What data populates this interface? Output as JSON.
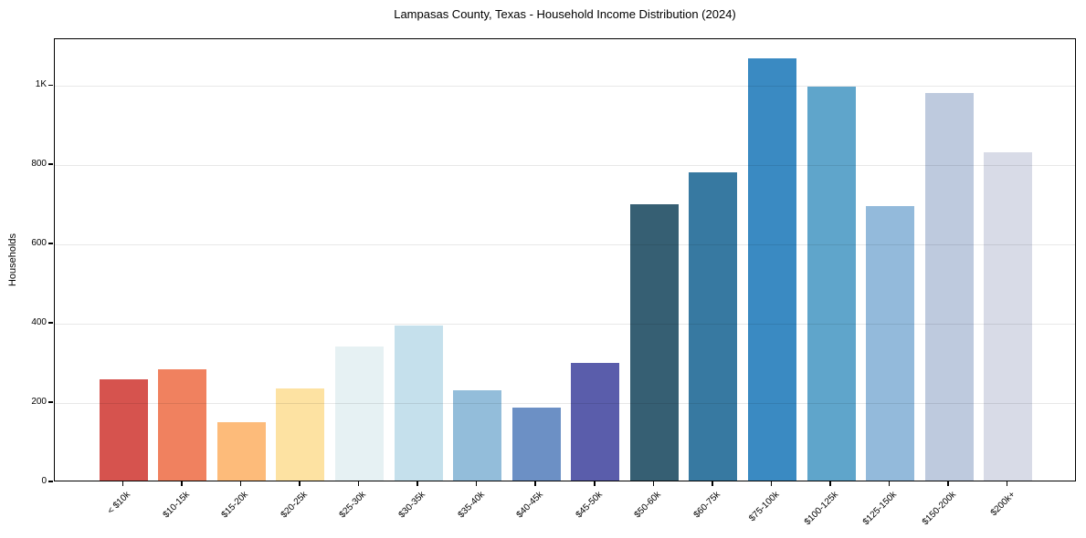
{
  "chart_data": {
    "type": "bar",
    "title": "Lampasas County, Texas - Household Income Distribution (2024)",
    "xlabel": "",
    "ylabel": "Households",
    "categories": [
      "< $10k",
      "$10-15k",
      "$15-20k",
      "$20-25k",
      "$25-30k",
      "$30-35k",
      "$35-40k",
      "$40-45k",
      "$45-50k",
      "$50-60k",
      "$60-75k",
      "$75-100k",
      "$100-125k",
      "$125-150k",
      "$150-200k",
      "$200k+"
    ],
    "values": [
      255,
      280,
      147,
      233,
      338,
      390,
      228,
      184,
      297,
      697,
      778,
      1065,
      993,
      692,
      977,
      829
    ],
    "bar_colors": [
      "#d6534e",
      "#f0815f",
      "#fdbb7a",
      "#fde2a2",
      "#e6f1f3",
      "#c5e0ec",
      "#93bdda",
      "#6c90c5",
      "#5a5dab",
      "#365f73",
      "#3779a1",
      "#3a8ac2",
      "#5fa5cb",
      "#93badb",
      "#becade",
      "#d8dbe7"
    ],
    "ylim": [
      0,
      1118
    ],
    "yticks": [
      {
        "value": 0,
        "label": "0"
      },
      {
        "value": 200,
        "label": "200"
      },
      {
        "value": 400,
        "label": "400"
      },
      {
        "value": 600,
        "label": "600"
      },
      {
        "value": 800,
        "label": "800"
      },
      {
        "value": 1000,
        "label": "1K"
      }
    ],
    "grid": "horizontal, drawn above bars",
    "legend_position": "none"
  },
  "style_colors": {
    "background": "#ffffff",
    "spine": "#000000",
    "grid_line": "rgba(0,0,0,0.09)",
    "text": "#000000"
  }
}
